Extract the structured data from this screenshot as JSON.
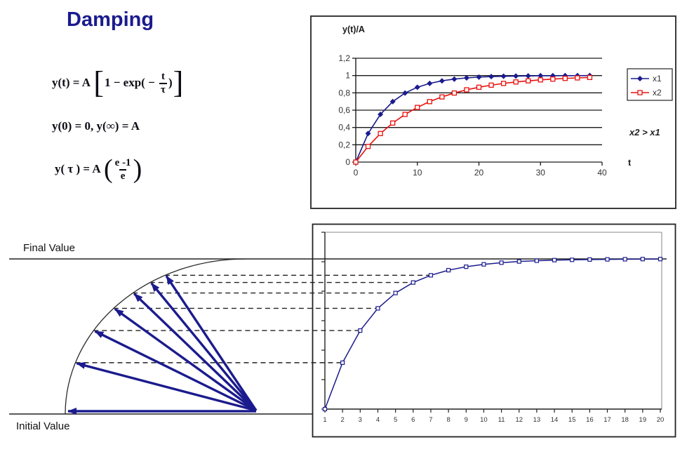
{
  "title": "Damping",
  "labels": {
    "final_value": "Final Value",
    "initial_value": "Initial Value"
  },
  "formulas": {
    "f1": {
      "pre": "y(t) = A ",
      "lb": "[",
      "body_pre": "1 − exp( − ",
      "num": "t",
      "den": "τ",
      "body_post": ")",
      "rb": "]"
    },
    "f2": "y(0) = 0, y(∞) = A",
    "f3": {
      "pre": "y( τ ) = A ",
      "lp": "(",
      "num": "e -1",
      "den": "e",
      "rp": ")"
    }
  },
  "colors": {
    "navy": "#1b1b8e",
    "red": "#e8100c",
    "axis": "#1a1a1a",
    "guide": "#222222",
    "inner_border": "#a0a0a0"
  },
  "chart_data": [
    {
      "type": "line",
      "title": "",
      "ylabel": "y(t)/A",
      "xlabel": "t",
      "annotation": "x2 > x1",
      "xlim": [
        0,
        40
      ],
      "ylim": [
        0,
        1.2
      ],
      "grid": true,
      "legend_position": "right",
      "ytick_labels": [
        "0",
        "0,2",
        "0,4",
        "0,6",
        "0,8",
        "1",
        "1,2"
      ],
      "xticks": [
        0,
        10,
        20,
        30,
        40
      ],
      "x": [
        0,
        2,
        4,
        6,
        8,
        10,
        12,
        14,
        16,
        18,
        20,
        22,
        24,
        26,
        28,
        30,
        32,
        34,
        36,
        38
      ],
      "series": [
        {
          "name": "x1",
          "color": "#1b1b8e",
          "marker": "diamond-filled",
          "values": [
            0,
            0.33,
            0.551,
            0.699,
            0.798,
            0.865,
            0.909,
            0.939,
            0.959,
            0.973,
            0.982,
            0.988,
            0.992,
            0.994,
            0.996,
            0.998,
            0.998,
            0.999,
            0.999,
            1.0
          ]
        },
        {
          "name": "x2",
          "color": "#e8100c",
          "marker": "square-open",
          "values": [
            0,
            0.181,
            0.33,
            0.451,
            0.551,
            0.632,
            0.699,
            0.753,
            0.798,
            0.835,
            0.865,
            0.889,
            0.909,
            0.926,
            0.939,
            0.95,
            0.959,
            0.967,
            0.973,
            0.978
          ]
        }
      ]
    },
    {
      "type": "line",
      "title": "",
      "xlabel": "",
      "ylabel": "",
      "grid": false,
      "color": "#1b1b8e",
      "marker": "square-open",
      "final_value_level": 1.0,
      "xticks": [
        1,
        2,
        3,
        4,
        5,
        6,
        7,
        8,
        9,
        10,
        11,
        12,
        13,
        14,
        15,
        16,
        17,
        18,
        19,
        20
      ],
      "x": [
        1,
        2,
        3,
        4,
        5,
        6,
        7,
        8,
        9,
        10,
        11,
        12,
        13,
        14,
        15,
        16,
        17,
        18,
        19,
        20
      ],
      "values": [
        0,
        0.309,
        0.523,
        0.671,
        0.773,
        0.843,
        0.891,
        0.925,
        0.948,
        0.964,
        0.975,
        0.983,
        0.988,
        0.992,
        0.994,
        0.996,
        0.997,
        0.998,
        0.999,
        0.999
      ],
      "dashed_guides_x": [
        2,
        3,
        4,
        5,
        6,
        7
      ]
    }
  ]
}
